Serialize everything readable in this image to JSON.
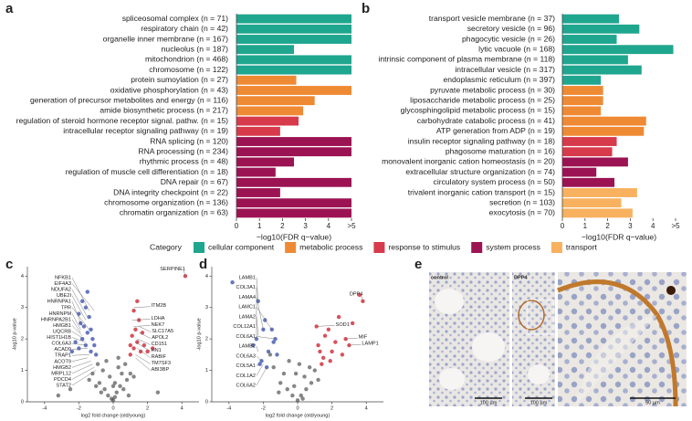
{
  "chart_data": [
    {
      "type": "hbar",
      "xlabel": "−log10(FDR q−value)",
      "xlim": [
        0,
        5
      ],
      "xticks": [
        0,
        1,
        2,
        3,
        4,
        {
          "value": 5,
          "label": ">5"
        }
      ],
      "categories": [
        "spliceosomal complex (n = 71)",
        "respiratory chain (n = 42)",
        "organelle inner membrane (n = 167)",
        "nucleolus (n = 187)",
        "mitochondrion (n = 468)",
        "chromosome (n = 122)",
        "protein sumoylation (n = 27)",
        "oxidative phosphorylation (n = 43)",
        "generation of precursor metabolites and energy (n = 116)",
        "amide biosynthetic process (n = 217)",
        "regulation of steroid hormone receptor signal. pathw. (n = 15)",
        "intracellular receptor signaling pathway (n = 19)",
        "RNA splicing (n = 120)",
        "RNA processing (n = 234)",
        "rhythmic process (n = 48)",
        "regulation of muscle cell differentiation (n = 18)",
        "DNA repair (n = 67)",
        "DNA integrity checkpoint (n = 22)",
        "chromosome organization (n = 136)",
        "chromatin organization (n = 63)"
      ],
      "values": [
        5,
        5,
        5,
        2.5,
        5,
        5,
        2.6,
        5,
        3.4,
        2.9,
        2.7,
        1.9,
        5,
        5,
        2.5,
        1.7,
        5,
        1.9,
        5,
        5
      ],
      "colors": [
        "#1fa68e",
        "#1fa68e",
        "#1fa68e",
        "#1fa68e",
        "#1fa68e",
        "#1fa68e",
        "#ef8a34",
        "#ef8a34",
        "#ef8a34",
        "#ef8a34",
        "#d73b4b",
        "#d73b4b",
        "#9c1353",
        "#9c1353",
        "#9c1353",
        "#9c1353",
        "#9c1353",
        "#9c1353",
        "#9c1353",
        "#9c1353"
      ]
    },
    {
      "type": "hbar",
      "xlabel": "−log10(FDR q−value)",
      "xlim": [
        0,
        5
      ],
      "xticks": [
        0,
        1,
        2,
        3,
        4,
        {
          "value": 5,
          "label": ">5"
        }
      ],
      "categories": [
        "transport vesicle membrane (n = 37)",
        "secretory vesicle (n = 96)",
        "phagocytic vesicle (n = 26)",
        "lytic vacuole (n = 168)",
        "intrinsic component of plasma membrane (n = 118)",
        "intracellular vesicle (n = 317)",
        "endoplasmic reticulum (n = 397)",
        "pyruvate metabolic process (n = 30)",
        "liposaccharide metabolic process (n = 25)",
        "glycosphingolipid metabolic process (n = 15)",
        "carbohydrate catabolic process (n = 41)",
        "ATP generation from ADP (n = 19)",
        "insulin receptor signaling pathway (n = 18)",
        "phagosome maturation (n = 16)",
        "monovalent inorganic cation homeostasis (n = 20)",
        "extracellular structure organization (n = 74)",
        "circulatory system process (n = 50)",
        "trivalent inorganic cation transport (n = 15)",
        "secretion (n = 103)",
        "exocytosis (n = 70)"
      ],
      "values": [
        2.5,
        3.4,
        2.4,
        4.9,
        2.9,
        3.5,
        1.7,
        1.8,
        1.8,
        1.7,
        3.7,
        3.6,
        2.4,
        2.2,
        2.9,
        1.5,
        2.3,
        3.3,
        2.6,
        3.1
      ],
      "colors": [
        "#1fa68e",
        "#1fa68e",
        "#1fa68e",
        "#1fa68e",
        "#1fa68e",
        "#1fa68e",
        "#1fa68e",
        "#ef8a34",
        "#ef8a34",
        "#ef8a34",
        "#ef8a34",
        "#ef8a34",
        "#d73b4b",
        "#d73b4b",
        "#9c1353",
        "#9c1353",
        "#9c1353",
        "#f8b15e",
        "#f8b15e",
        "#f8b15e"
      ]
    },
    {
      "type": "scatter",
      "xlabel": "log2 fold change (old/young)",
      "ylabel": "-log10 p-value",
      "xlim": [
        -5,
        5
      ],
      "ylim": [
        0,
        4.3
      ],
      "xticks": [
        -4,
        -2,
        0,
        2,
        4
      ],
      "yticks": [
        0,
        1,
        2,
        3,
        4
      ],
      "point_sets": [
        {
          "color": "#222222",
          "x": [
            -1.2,
            -0.8,
            -0.5,
            -0.3,
            -0.1,
            0,
            0.1,
            0.2,
            0.4,
            0.6,
            0.8,
            1.0,
            -0.9,
            -0.6,
            -0.2,
            0.3,
            0.5,
            -1.4,
            1.2,
            -0.4,
            0.1,
            0.7,
            -0.7,
            0.0,
            -2.5,
            -3.2,
            2.6,
            0.9,
            -1.0,
            0.3
          ],
          "y": [
            0.9,
            0.6,
            0.4,
            0.2,
            0.1,
            0.05,
            0.15,
            0.3,
            0.5,
            0.4,
            0.7,
            0.9,
            1.2,
            1.0,
            0.8,
            1.1,
            0.9,
            0.7,
            0.8,
            1.3,
            0.6,
            1.2,
            0.3,
            0.5,
            0.4,
            0.2,
            0.3,
            0.2,
            0.5,
            1.4
          ]
        },
        {
          "color": "#4a5fb5",
          "x": [
            -1.3,
            -1.6,
            -1.8,
            -2.0,
            -1.5,
            -1.2,
            -1.9,
            -2.2,
            -1.4,
            -1.7,
            -1.1,
            -2.4,
            -1.6,
            -1.3,
            -2.0,
            -1.0,
            -1.8,
            -1.5
          ],
          "y": [
            1.6,
            1.8,
            2.0,
            1.7,
            2.2,
            2.0,
            2.5,
            1.9,
            2.7,
            2.4,
            1.8,
            1.6,
            3.0,
            2.3,
            2.8,
            1.5,
            3.2,
            3.5
          ]
        },
        {
          "color": "#d0343f",
          "x": [
            1.0,
            1.2,
            1.4,
            1.6,
            1.1,
            1.3,
            1.8,
            2.0,
            1.5,
            1.2,
            2.3,
            1.7,
            1.0,
            1.4,
            4.2
          ],
          "y": [
            1.5,
            1.7,
            1.9,
            1.6,
            2.1,
            2.3,
            1.8,
            1.6,
            2.6,
            2.9,
            1.7,
            2.2,
            1.8,
            3.2,
            4.0
          ]
        }
      ],
      "annotations": [
        {
          "text": "NFKB1",
          "x": -1.4,
          "y": 2.9
        },
        {
          "text": "EIF4A3",
          "x": -1.1,
          "y": 2.9
        },
        {
          "text": "NDUFA2",
          "x": -1.5,
          "y": 2.7
        },
        {
          "text": "UBE2I",
          "x": -1.6,
          "y": 2.6
        },
        {
          "text": "HNRNPA1",
          "x": -1.8,
          "y": 2.4
        },
        {
          "text": "TPR",
          "x": -1.4,
          "y": 2.3
        },
        {
          "text": "HNRNPM",
          "x": -1.9,
          "y": 2.3
        },
        {
          "text": "HNRNPA2B1",
          "x": -1.9,
          "y": 2.2
        },
        {
          "text": "HMGB1",
          "x": -1.8,
          "y": 2.1
        },
        {
          "text": "UQCRB",
          "x": -1.7,
          "y": 2.0
        },
        {
          "text": "HIST1H1B",
          "x": -1.6,
          "y": 1.9
        },
        {
          "text": "COL6A3",
          "x": -1.6,
          "y": 1.8
        },
        {
          "text": "ACAD9",
          "x": -1.5,
          "y": 1.7
        },
        {
          "text": "TRAP1",
          "x": -1.4,
          "y": 1.5
        },
        {
          "text": "ACOT9",
          "x": -1.5,
          "y": 1.4
        },
        {
          "text": "HMGB2",
          "x": -1.3,
          "y": 1.3
        },
        {
          "text": "MRPL12",
          "x": -1.2,
          "y": 1.2
        },
        {
          "text": "PDCD4",
          "x": -1.1,
          "y": 1.1
        },
        {
          "text": "STAT2",
          "x": -1.0,
          "y": 1.0
        },
        {
          "text": "SERPINE1",
          "x": 4.2,
          "y": 4.0
        },
        {
          "text": "ITM2B",
          "x": 1.2,
          "y": 3.0
        },
        {
          "text": "LDHA",
          "x": 1.1,
          "y": 2.6
        },
        {
          "text": "NEK7",
          "x": 1.2,
          "y": 2.4
        },
        {
          "text": "SLC17A5",
          "x": 1.5,
          "y": 2.4
        },
        {
          "text": "APOL2",
          "x": 1.5,
          "y": 2.2
        },
        {
          "text": "CD151",
          "x": 1.4,
          "y": 2.0
        },
        {
          "text": "HN1",
          "x": 1.3,
          "y": 1.9
        },
        {
          "text": "RABIF",
          "x": 1.4,
          "y": 1.7
        },
        {
          "text": "TM7SF3",
          "x": 1.3,
          "y": 1.5
        },
        {
          "text": "ABI3BP",
          "x": 1.3,
          "y": 1.4
        }
      ]
    },
    {
      "type": "scatter",
      "xlabel": "log2 fold change (old/young)",
      "ylabel": "-log10 p-value",
      "xlim": [
        -5,
        5
      ],
      "ylim": [
        0,
        4.3
      ],
      "xticks": [
        -4,
        -2,
        0,
        2,
        4
      ],
      "yticks": [
        0,
        1,
        2,
        3,
        4
      ],
      "point_sets": [
        {
          "color": "#222222",
          "x": [
            -1.0,
            -0.6,
            -0.3,
            0,
            0.2,
            0.5,
            0.8,
            -0.8,
            -0.2,
            0.4,
            1.0,
            -1.4,
            0.1,
            -0.5,
            0.7,
            -1.1,
            0.3,
            -0.1,
            1.2,
            -1.6
          ],
          "y": [
            0.6,
            0.4,
            0.2,
            0.05,
            0.2,
            0.4,
            0.6,
            0.9,
            0.5,
            0.8,
            1.0,
            1.1,
            1.2,
            1.3,
            1.1,
            0.3,
            0.1,
            0.9,
            0.7,
            1.5
          ]
        },
        {
          "color": "#4a5fb5",
          "x": [
            -2.3,
            -2.0,
            -1.5,
            -2.4,
            -1.3,
            -2.1,
            -2.2,
            -1.8,
            -1.7,
            -1.2,
            -2.6,
            -1.4,
            -1.9,
            -3.8
          ],
          "y": [
            3.2,
            2.3,
            2.3,
            2.0,
            2.0,
            1.3,
            1.2,
            1.1,
            1.6,
            1.5,
            1.8,
            1.9,
            2.6,
            3.8
          ]
        },
        {
          "color": "#d0343f",
          "x": [
            1.1,
            2.8,
            3.0,
            3.8,
            1.5,
            2.0,
            1.8,
            1.2,
            2.4,
            1.4,
            2.2,
            3.2,
            1.6,
            2.6,
            1.9,
            1.3,
            3.6
          ],
          "y": [
            2.4,
            2.0,
            1.8,
            3.2,
            1.4,
            1.6,
            2.3,
            1.8,
            2.7,
            1.2,
            1.9,
            2.5,
            2.1,
            1.5,
            1.3,
            1.6,
            3.4
          ]
        }
      ],
      "annotations": [
        {
          "text": "LAMB1",
          "x": -2.3,
          "y": 3.2
        },
        {
          "text": "COL3A1",
          "x": -2.4,
          "y": 2.4
        },
        {
          "text": "LAMA4",
          "x": -2.0,
          "y": 2.3
        },
        {
          "text": "LAMC1",
          "x": -1.5,
          "y": 2.3
        },
        {
          "text": "LAMA2",
          "x": -2.3,
          "y": 2.1
        },
        {
          "text": "COL12A1",
          "x": -2.4,
          "y": 2.0
        },
        {
          "text": "COL6A1",
          "x": -1.3,
          "y": 2.0
        },
        {
          "text": "LAMB2",
          "x": -2.3,
          "y": 1.6
        },
        {
          "text": "COL6A3",
          "x": -2.1,
          "y": 1.3
        },
        {
          "text": "COL5A1",
          "x": -2.2,
          "y": 1.2
        },
        {
          "text": "COL1A2",
          "x": -2.0,
          "y": 1.2
        },
        {
          "text": "COL6A2",
          "x": -1.8,
          "y": 1.1
        },
        {
          "text": "DPP4",
          "x": 3.8,
          "y": 3.2
        },
        {
          "text": "SOD1",
          "x": 1.1,
          "y": 2.4
        },
        {
          "text": "MIF",
          "x": 2.8,
          "y": 2.0
        },
        {
          "text": "LAMP1",
          "x": 3.0,
          "y": 1.8
        }
      ]
    }
  ],
  "legend": {
    "title": "Category",
    "entries": [
      {
        "name": "cellular component",
        "color": "#1fa68e"
      },
      {
        "name": "metabolic process",
        "color": "#ef8a34"
      },
      {
        "name": "response to stimulus",
        "color": "#d73b4b"
      },
      {
        "name": "system process",
        "color": "#9c1353"
      },
      {
        "name": "transport",
        "color": "#f8b15e"
      }
    ]
  },
  "panel_labels": [
    "a",
    "b",
    "c",
    "d",
    "e"
  ],
  "micrographs": [
    {
      "label": "control",
      "scale_bar": "100 µm"
    },
    {
      "label": "DPP4",
      "scale_bar": "100 µm"
    },
    {
      "scale_bar": "50 µm"
    }
  ]
}
